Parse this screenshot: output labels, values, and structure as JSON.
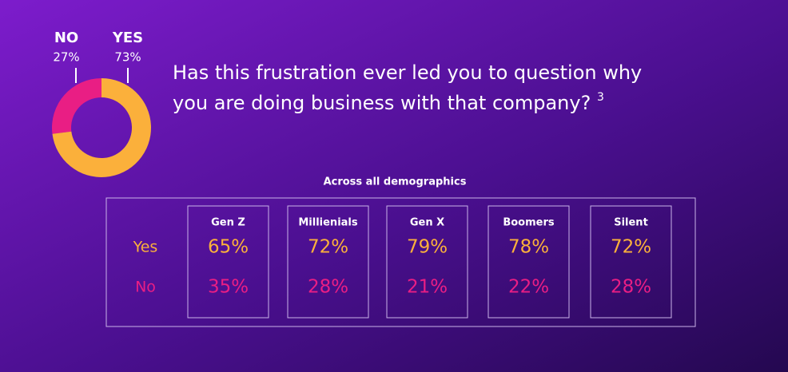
{
  "chart_data": {
    "type": "pie",
    "donut": true,
    "categories": [
      "NO",
      "YES"
    ],
    "values": [
      27,
      73
    ],
    "value_labels": [
      "27%",
      "73%"
    ],
    "colors": [
      "#e91e84",
      "#fbb03b"
    ]
  },
  "question": {
    "text": "Has this frustration ever led you to question why you are doing business with that company?",
    "footnote": "3"
  },
  "table": {
    "title": "Across all demographics",
    "columns": [
      "Gen Z",
      "Millienials",
      "Gen X",
      "Boomers",
      "Silent"
    ],
    "rows": [
      {
        "label": "Yes",
        "color": "#fbb03b",
        "cells": [
          "65%",
          "72%",
          "79%",
          "78%",
          "72%"
        ]
      },
      {
        "label": "No",
        "color": "#e91e84",
        "cells": [
          "35%",
          "28%",
          "21%",
          "22%",
          "28%"
        ]
      }
    ]
  }
}
